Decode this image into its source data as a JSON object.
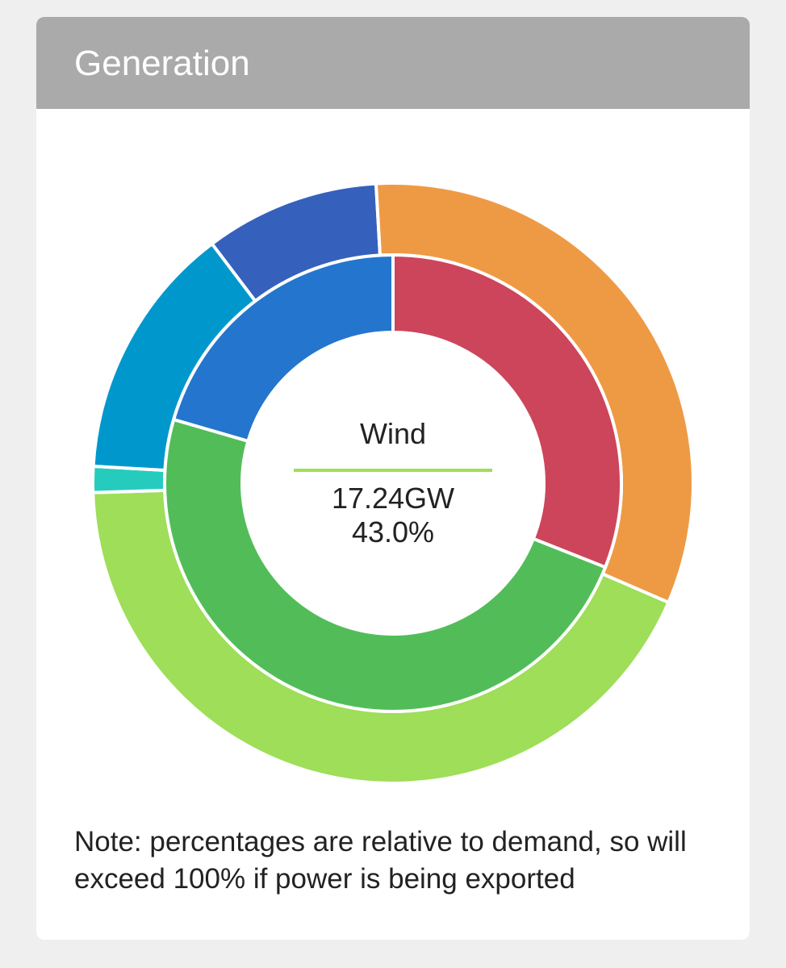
{
  "header": {
    "title": "Generation"
  },
  "center": {
    "name": "Wind",
    "value": "17.24GW",
    "percent": "43.0%",
    "rule_color": "#9ede58"
  },
  "note": "Note: percentages are relative to demand, so will exceed 100% if power is being exported",
  "chart_data": {
    "type": "pie",
    "style": "nested-donut",
    "title": "Generation",
    "rings": [
      {
        "ring": "outer",
        "slices": [
          {
            "label": "Wind",
            "value": 43.0,
            "color": "#9ede58"
          },
          {
            "label": "",
            "value": 1.4,
            "color": "#25ccbd"
          },
          {
            "label": "",
            "value": 13.8,
            "color": "#0098cc"
          },
          {
            "label": "",
            "value": 9.4,
            "color": "#3561bc"
          },
          {
            "label": "",
            "value": 32.4,
            "color": "#ee9a45"
          }
        ]
      },
      {
        "ring": "inner",
        "slices": [
          {
            "label": "",
            "value": 31.0,
            "color": "#cd455a"
          },
          {
            "label": "",
            "value": 48.5,
            "color": "#52bd58"
          },
          {
            "label": "",
            "value": 20.5,
            "color": "#2475cd"
          }
        ]
      }
    ],
    "highlight": {
      "label": "Wind",
      "value_gw": 17.24,
      "percent": 43.0
    }
  }
}
